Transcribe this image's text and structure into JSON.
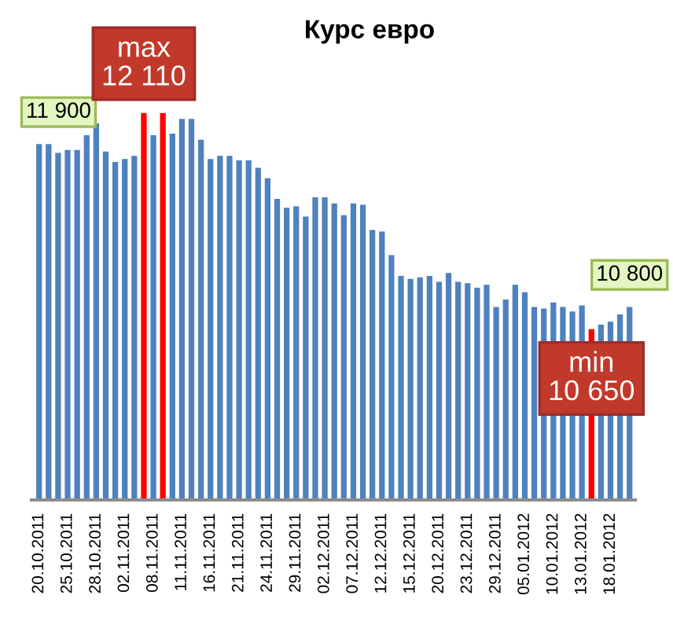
{
  "chart_data": {
    "type": "bar",
    "title": "Курс евро",
    "categories": [
      "20.10.2011",
      null,
      null,
      "25.10.2011",
      null,
      null,
      "28.10.2011",
      null,
      null,
      "02.11.2011",
      null,
      null,
      "08.11.2011",
      null,
      null,
      "11.11.2011",
      null,
      null,
      "16.11.2011",
      null,
      null,
      "21.11.2011",
      null,
      null,
      "24.11.2011",
      null,
      null,
      "29.11.2011",
      null,
      null,
      "02.12.2011",
      null,
      null,
      "07.12.2011",
      null,
      null,
      "12.12.2011",
      null,
      null,
      "15.12.2011",
      null,
      null,
      "20.12.2011",
      null,
      null,
      "23.12.2011",
      null,
      null,
      "29.12.2011",
      null,
      null,
      "05.01.2012",
      null,
      null,
      "10.01.2012",
      null,
      null,
      "13.01.2012",
      null,
      null,
      "18.01.2012",
      null,
      null
    ],
    "values": [
      11900,
      11900,
      11840,
      11860,
      11860,
      11960,
      12040,
      11850,
      11780,
      11800,
      11820,
      12110,
      11960,
      12110,
      11970,
      12070,
      12070,
      11930,
      11800,
      11820,
      11820,
      11790,
      11790,
      11740,
      11670,
      11530,
      11470,
      11480,
      11410,
      11540,
      11540,
      11500,
      11420,
      11500,
      11490,
      11320,
      11310,
      11150,
      11010,
      10990,
      11000,
      11010,
      10970,
      11030,
      10970,
      10960,
      10930,
      10950,
      10800,
      10850,
      10950,
      10900,
      10800,
      10790,
      10830,
      10800,
      10770,
      10810,
      10650,
      10680,
      10700,
      10750,
      10800
    ],
    "color": "#4f81bd",
    "colors": [
      "#4f81bd",
      "#4f81bd",
      "#4f81bd",
      "#4f81bd",
      "#4f81bd",
      "#4f81bd",
      "#4f81bd",
      "#4f81bd",
      "#4f81bd",
      "#4f81bd",
      "#4f81bd",
      "#ff0000",
      "#4f81bd",
      "#ff0000",
      "#4f81bd",
      "#4f81bd",
      "#4f81bd",
      "#4f81bd",
      "#4f81bd",
      "#4f81bd",
      "#4f81bd",
      "#4f81bd",
      "#4f81bd",
      "#4f81bd",
      "#4f81bd",
      "#4f81bd",
      "#4f81bd",
      "#4f81bd",
      "#4f81bd",
      "#4f81bd",
      "#4f81bd",
      "#4f81bd",
      "#4f81bd",
      "#4f81bd",
      "#4f81bd",
      "#4f81bd",
      "#4f81bd",
      "#4f81bd",
      "#4f81bd",
      "#4f81bd",
      "#4f81bd",
      "#4f81bd",
      "#4f81bd",
      "#4f81bd",
      "#4f81bd",
      "#4f81bd",
      "#4f81bd",
      "#4f81bd",
      "#4f81bd",
      "#4f81bd",
      "#4f81bd",
      "#4f81bd",
      "#4f81bd",
      "#4f81bd",
      "#4f81bd",
      "#4f81bd",
      "#4f81bd",
      "#4f81bd",
      "#ff0000",
      "#4f81bd",
      "#4f81bd",
      "#4f81bd",
      "#4f81bd"
    ],
    "value_labels": [
      "11 900",
      null,
      null,
      null,
      null,
      null,
      null,
      null,
      null,
      null,
      null,
      "12 110",
      null,
      null,
      null,
      null,
      null,
      null,
      null,
      null,
      null,
      null,
      null,
      null,
      null,
      null,
      null,
      null,
      null,
      null,
      null,
      null,
      null,
      null,
      null,
      null,
      null,
      null,
      null,
      null,
      null,
      null,
      null,
      null,
      null,
      null,
      null,
      null,
      null,
      null,
      null,
      null,
      null,
      null,
      null,
      null,
      null,
      null,
      "10 650",
      null,
      null,
      null,
      "10 800"
    ],
    "annotations": [
      "max",
      "min"
    ],
    "grid": false
  }
}
